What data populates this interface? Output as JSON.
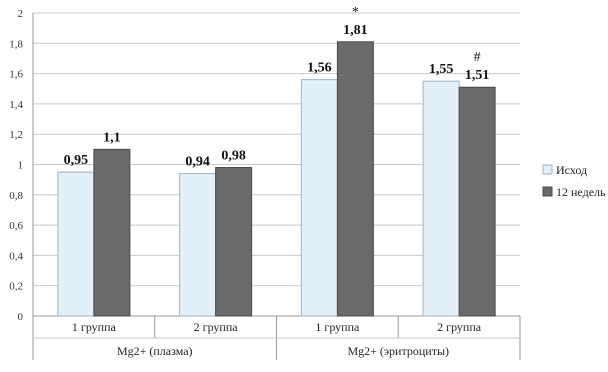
{
  "chart_data": {
    "type": "bar",
    "title": "",
    "xlabel": "",
    "ylabel": "",
    "ylim": [
      0,
      2
    ],
    "y_ticks": [
      0,
      0.2,
      0.4,
      0.6,
      0.8,
      1,
      1.2,
      1.4,
      1.6,
      1.8,
      2
    ],
    "y_tick_labels": [
      "0",
      "0,2",
      "0,4",
      "0,6",
      "0,8",
      "1",
      "1,2",
      "1,4",
      "1,6",
      "1,8",
      "2"
    ],
    "grid": true,
    "legend_position": "right",
    "categories": [
      "1 группа",
      "2 группа",
      "1 группа",
      "2 группа"
    ],
    "groups": [
      {
        "label": "Mg2+ (плазма)",
        "span": [
          0,
          1
        ]
      },
      {
        "label": "Mg2+ (эритроциты)",
        "span": [
          2,
          3
        ]
      }
    ],
    "series": [
      {
        "name": "Исход",
        "color": "#e2f0fa",
        "values": [
          0.95,
          0.94,
          1.56,
          1.55
        ],
        "labels": [
          "0,95",
          "0,94",
          "1,56",
          "1,55"
        ]
      },
      {
        "name": "12 недель",
        "color": "#6a6a6a",
        "values": [
          1.1,
          0.98,
          1.81,
          1.51
        ],
        "labels": [
          "1,1",
          "0,98",
          "1,81",
          "1,51"
        ]
      }
    ],
    "annotations": [
      {
        "category_index": 2,
        "series_index": 1,
        "text": "*"
      },
      {
        "category_index": 3,
        "series_index": 1,
        "text": "#"
      }
    ]
  }
}
